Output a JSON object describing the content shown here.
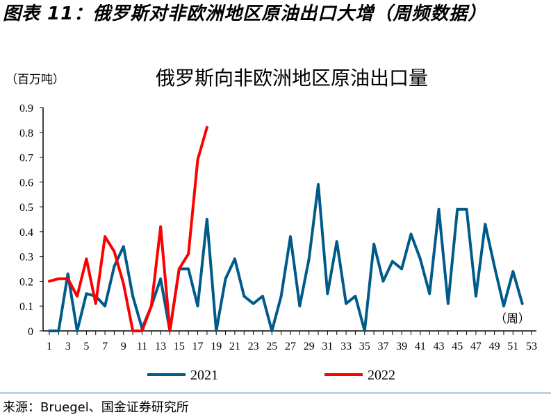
{
  "figure_title": "图表 11：俄罗斯对非欧洲地区原油出口大增（周频数据）",
  "source": "来源：Bruegel、国金证券研究所",
  "chart_data": {
    "type": "line",
    "title": "俄罗斯向非欧洲地区原油出口量",
    "ylabel": "（百万吨）",
    "xlabel": "（周）",
    "ylim": [
      0,
      0.9
    ],
    "xlim": [
      1,
      53
    ],
    "yticks": [
      "0",
      "0.1",
      "0.2",
      "0.3",
      "0.4",
      "0.5",
      "0.6",
      "0.7",
      "0.8",
      "0.9"
    ],
    "xticks": [
      "1",
      "3",
      "5",
      "7",
      "9",
      "11",
      "13",
      "15",
      "17",
      "19",
      "21",
      "23",
      "25",
      "27",
      "29",
      "31",
      "33",
      "35",
      "37",
      "39",
      "41",
      "43",
      "45",
      "47",
      "49",
      "51",
      "53"
    ],
    "legend": "bottom",
    "series": [
      {
        "name": "2021",
        "color": "#005a8a",
        "values": [
          0,
          0,
          0.23,
          0,
          0.15,
          0.14,
          0.1,
          0.26,
          0.34,
          0.14,
          0.01,
          0.1,
          0.21,
          0,
          0.25,
          0.25,
          0.1,
          0.45,
          0,
          0.21,
          0.29,
          0.14,
          0.11,
          0.14,
          0,
          0.14,
          0.38,
          0.1,
          0.29,
          0.59,
          0.15,
          0.36,
          0.11,
          0.14,
          0,
          0.35,
          0.2,
          0.28,
          0.25,
          0.39,
          0.29,
          0.15,
          0.49,
          0.11,
          0.49,
          0.49,
          0.14,
          0.43,
          0.26,
          0.1,
          0.24,
          0.11
        ]
      },
      {
        "name": "2022",
        "color": "#ff0000",
        "values": [
          0.2,
          0.21,
          0.21,
          0.14,
          0.29,
          0.11,
          0.38,
          0.32,
          0.19,
          0,
          0,
          0.1,
          0.42,
          0,
          0.25,
          0.31,
          0.69,
          0.82
        ]
      }
    ]
  }
}
